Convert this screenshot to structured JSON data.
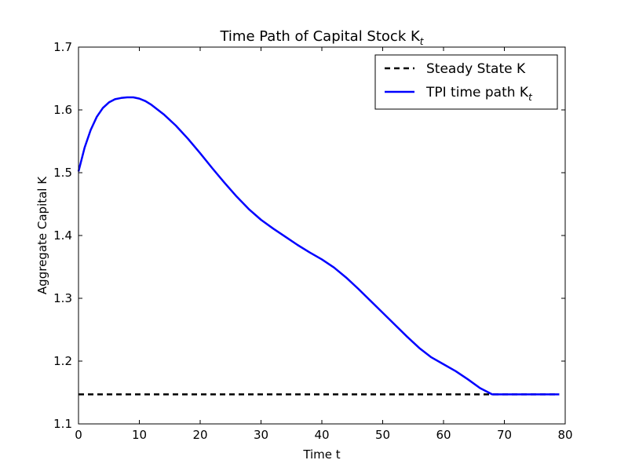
{
  "chart_data": {
    "type": "line",
    "title": "Time Path of Capital Stock K",
    "title_subscript": "t",
    "xlabel": "Time t",
    "ylabel": "Aggregate Capital K",
    "xlim": [
      0,
      80
    ],
    "ylim": [
      1.1,
      1.7
    ],
    "x_ticks": [
      0,
      10,
      20,
      30,
      40,
      50,
      60,
      70,
      80
    ],
    "y_ticks": [
      1.1,
      1.2,
      1.3,
      1.4,
      1.5,
      1.6,
      1.7
    ],
    "x_tick_labels": [
      "0",
      "10",
      "20",
      "30",
      "40",
      "50",
      "60",
      "70",
      "80"
    ],
    "y_tick_labels": [
      "1.1",
      "1.2",
      "1.3",
      "1.4",
      "1.5",
      "1.6",
      "1.7"
    ],
    "grid": false,
    "legend_position": "top-right",
    "series": [
      {
        "name": "Steady State K",
        "style": "dashed",
        "color": "#000000",
        "x": [
          0,
          79
        ],
        "y": [
          1.147,
          1.147
        ]
      },
      {
        "name": "TPI time path K",
        "name_subscript": "t",
        "style": "solid",
        "color": "#0000ff",
        "x": [
          0,
          1,
          2,
          3,
          4,
          5,
          6,
          7,
          8,
          9,
          10,
          11,
          12,
          14,
          16,
          18,
          20,
          22,
          24,
          26,
          28,
          30,
          32,
          34,
          36,
          38,
          40,
          42,
          44,
          46,
          48,
          50,
          52,
          54,
          56,
          58,
          60,
          62,
          64,
          66,
          68,
          69,
          70,
          72,
          74,
          76,
          78,
          79
        ],
        "y": [
          1.502,
          1.54,
          1.568,
          1.589,
          1.603,
          1.612,
          1.617,
          1.619,
          1.62,
          1.62,
          1.618,
          1.614,
          1.608,
          1.593,
          1.575,
          1.554,
          1.531,
          1.507,
          1.484,
          1.462,
          1.442,
          1.425,
          1.411,
          1.398,
          1.385,
          1.373,
          1.362,
          1.349,
          1.333,
          1.315,
          1.296,
          1.277,
          1.258,
          1.239,
          1.221,
          1.206,
          1.195,
          1.184,
          1.171,
          1.157,
          1.147,
          1.147,
          1.147,
          1.147,
          1.147,
          1.147,
          1.147,
          1.147
        ]
      }
    ]
  }
}
